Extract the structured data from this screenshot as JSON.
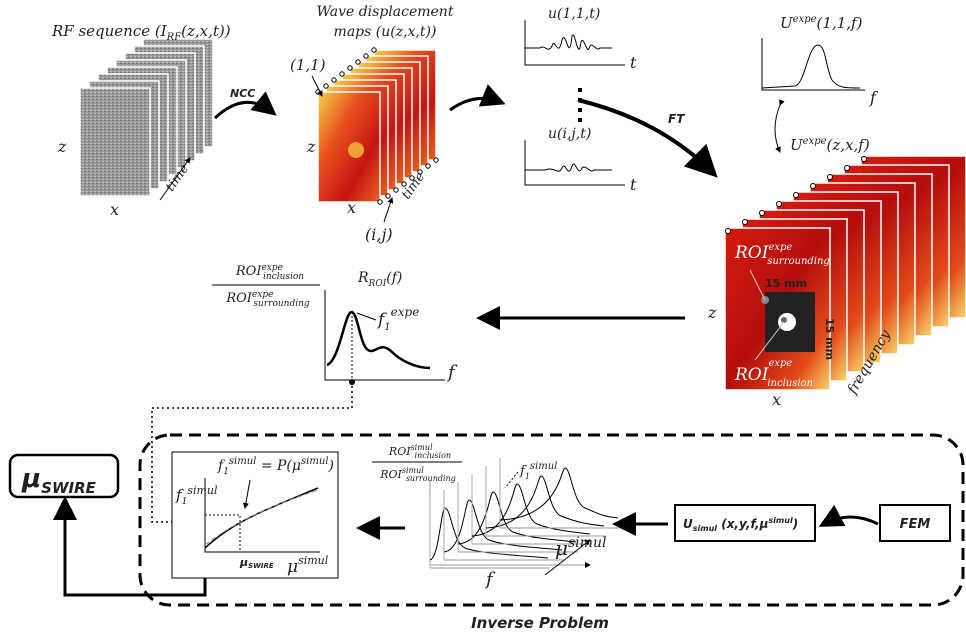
{
  "rf": {
    "label": "RF sequence (I",
    "sub": "RF",
    "tail": "(z,x,t))",
    "z": "z",
    "x": "x",
    "time": "time"
  },
  "ncc": "NCC",
  "wave": {
    "title_1": "Wave displacement",
    "title_2": "maps (u(z,x,t))",
    "first": "(1,1)",
    "last": "(i,j)",
    "z": "z",
    "x": "x",
    "time": "time"
  },
  "signals": {
    "first": "u(1,1,t)",
    "last": "u(i,j,t)",
    "t1": "t",
    "t2": "t"
  },
  "ft": "FT",
  "spectrum": {
    "base": "U",
    "sup": "expe",
    "tail": "(1,1,f)",
    "f": "f"
  },
  "freq_maps": {
    "base": "U",
    "sup": "expe",
    "tail": "(z,x,f)",
    "roi_s": {
      "base": "ROI",
      "sup": "expe",
      "sub": "surrounding"
    },
    "size_h": "15 mm",
    "size_v": "15 mm",
    "z": "z",
    "roi_i": {
      "base": "ROI",
      "sup": "expe",
      "sub": "inclusion"
    },
    "x": "x",
    "frequency": "frequency"
  },
  "ratio": {
    "num": {
      "base": "ROI",
      "sup": "expe",
      "sub": "inclusion"
    },
    "den": {
      "base": "ROI",
      "sup": "expe",
      "sub": "surrounding"
    },
    "r_base": "R",
    "r_sub": "ROI",
    "r_tail": "(f)",
    "peak_base": "f",
    "peak_sub": "1",
    "peak_sup": "expe",
    "f": "f"
  },
  "result": {
    "mu": "μ",
    "sub": "SWIRE"
  },
  "calib": {
    "eq_base": "f",
    "eq_sub": "1",
    "eq_sup": "simul",
    "eq_tail": " = P(μ",
    "eq_sup2": "simul",
    "eq_close": ")",
    "y_base": "f",
    "y_sub": "1",
    "y_sup": "simul",
    "mark_mu": "μ",
    "mark_sub": "SWIRE",
    "x_mu": "μ",
    "x_sup": "simul"
  },
  "waterfall": {
    "num": {
      "base": "ROI",
      "sup": "simul",
      "sub": "inclusion"
    },
    "den": {
      "base": "ROI",
      "sup": "simul",
      "sub": "surrounding"
    },
    "peak_base": "f",
    "peak_sub": "1",
    "peak_sup": "simul",
    "f": "f",
    "mu": "μ",
    "mu_sup": "simul"
  },
  "u_simul": {
    "base": "U",
    "sub": "simul",
    "tail": " (x,y,f,μ",
    "sup": "simul",
    "close": ")"
  },
  "fem": "FEM",
  "footer": "Inverse Problem"
}
